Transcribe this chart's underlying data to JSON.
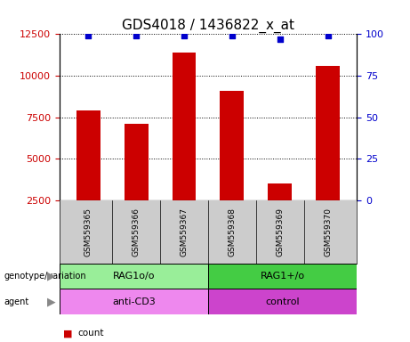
{
  "title": "GDS4018 / 1436822_x_at",
  "samples": [
    "GSM559365",
    "GSM559366",
    "GSM559367",
    "GSM559368",
    "GSM559369",
    "GSM559370"
  ],
  "counts": [
    7900,
    7100,
    11400,
    9100,
    3500,
    10600
  ],
  "percentiles": [
    99,
    99,
    99,
    99,
    97,
    99
  ],
  "ylim_left": [
    2500,
    12500
  ],
  "ylim_right": [
    0,
    100
  ],
  "yticks_left": [
    2500,
    5000,
    7500,
    10000,
    12500
  ],
  "yticks_right": [
    0,
    25,
    50,
    75,
    100
  ],
  "bar_color": "#cc0000",
  "dot_color": "#0000cc",
  "bar_width": 0.5,
  "genotype_labels": [
    {
      "text": "RAG1o/o",
      "samples": [
        0,
        1,
        2
      ],
      "color": "#99ee99"
    },
    {
      "text": "RAG1+/o",
      "samples": [
        3,
        4,
        5
      ],
      "color": "#44cc44"
    }
  ],
  "agent_labels": [
    {
      "text": "anti-CD3",
      "samples": [
        0,
        1,
        2
      ],
      "color": "#ee88ee"
    },
    {
      "text": "control",
      "samples": [
        3,
        4,
        5
      ],
      "color": "#cc44cc"
    }
  ],
  "legend_count_color": "#cc0000",
  "legend_percentile_color": "#0000cc",
  "sample_bg_color": "#cccccc",
  "title_fontsize": 11,
  "tick_fontsize": 8,
  "label_fontsize": 6.5,
  "annot_fontsize": 8
}
